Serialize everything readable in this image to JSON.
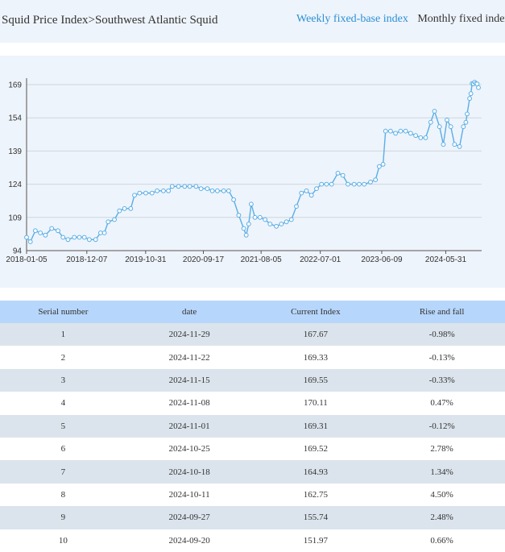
{
  "breadcrumb": {
    "parent": "Squid Price Index",
    "separator": ">",
    "current": "Southwest Atlantic Squid"
  },
  "tabs": [
    {
      "label": "Weekly fixed-base index",
      "active": true
    },
    {
      "label": "Monthly fixed index",
      "active": false
    }
  ],
  "colors": {
    "accent": "#2b8fd6",
    "series_line": "#5aaee6",
    "negative": "#1a9a2c",
    "positive": "#e02020",
    "panel_bg": "#eef4fb",
    "table_header_bg": "#b7d6fb",
    "row_alt_bg": "#dbe4ec"
  },
  "chart_data": {
    "type": "line",
    "ylim": [
      94,
      169
    ],
    "y_ticks": [
      94,
      109,
      124,
      139,
      154,
      169
    ],
    "x_ticks": [
      "2018-01-05",
      "2018-12-07",
      "2019-10-31",
      "2020-09-17",
      "2021-08-05",
      "2022-07-01",
      "2023-06-09",
      "2024-05-31"
    ],
    "grid": true,
    "series": [
      {
        "points": [
          [
            "2018-01-05",
            100
          ],
          [
            "2018-01-26",
            98
          ],
          [
            "2018-02-23",
            103
          ],
          [
            "2018-03-23",
            102
          ],
          [
            "2018-04-20",
            101
          ],
          [
            "2018-05-25",
            104
          ],
          [
            "2018-06-29",
            103
          ],
          [
            "2018-07-27",
            100
          ],
          [
            "2018-08-24",
            99
          ],
          [
            "2018-09-28",
            100
          ],
          [
            "2018-10-26",
            100
          ],
          [
            "2018-11-23",
            100
          ],
          [
            "2018-12-21",
            99
          ],
          [
            "2019-01-25",
            99
          ],
          [
            "2019-02-22",
            102
          ],
          [
            "2019-03-15",
            102
          ],
          [
            "2019-04-05",
            107
          ],
          [
            "2019-05-10",
            108
          ],
          [
            "2019-06-07",
            112
          ],
          [
            "2019-07-05",
            113
          ],
          [
            "2019-08-09",
            113
          ],
          [
            "2019-08-30",
            119
          ],
          [
            "2019-09-27",
            120
          ],
          [
            "2019-11-01",
            120
          ],
          [
            "2019-12-06",
            120
          ],
          [
            "2020-01-03",
            121
          ],
          [
            "2020-02-07",
            121
          ],
          [
            "2020-03-06",
            121
          ],
          [
            "2020-03-27",
            123
          ],
          [
            "2020-05-01",
            123
          ],
          [
            "2020-06-05",
            123
          ],
          [
            "2020-07-03",
            123
          ],
          [
            "2020-08-07",
            123
          ],
          [
            "2020-09-04",
            122
          ],
          [
            "2020-10-09",
            122
          ],
          [
            "2020-11-06",
            121
          ],
          [
            "2020-12-04",
            121
          ],
          [
            "2021-01-08",
            121
          ],
          [
            "2021-02-05",
            121
          ],
          [
            "2021-03-05",
            117
          ],
          [
            "2021-04-02",
            110
          ],
          [
            "2021-04-30",
            104
          ],
          [
            "2021-05-14",
            101
          ],
          [
            "2021-05-28",
            106
          ],
          [
            "2021-06-11",
            115
          ],
          [
            "2021-07-02",
            109
          ],
          [
            "2021-07-30",
            109
          ],
          [
            "2021-08-27",
            108
          ],
          [
            "2021-09-24",
            106
          ],
          [
            "2021-10-29",
            105
          ],
          [
            "2021-11-26",
            106
          ],
          [
            "2021-12-24",
            107
          ],
          [
            "2022-01-21",
            108
          ],
          [
            "2022-02-18",
            114
          ],
          [
            "2022-03-18",
            120
          ],
          [
            "2022-04-15",
            121
          ],
          [
            "2022-05-13",
            119
          ],
          [
            "2022-06-10",
            122
          ],
          [
            "2022-07-08",
            124
          ],
          [
            "2022-08-05",
            124
          ],
          [
            "2022-09-02",
            124
          ],
          [
            "2022-10-07",
            129
          ],
          [
            "2022-11-04",
            128
          ],
          [
            "2022-12-02",
            124
          ],
          [
            "2023-01-06",
            124
          ],
          [
            "2023-02-03",
            124
          ],
          [
            "2023-03-03",
            124
          ],
          [
            "2023-04-07",
            125
          ],
          [
            "2023-05-05",
            126
          ],
          [
            "2023-05-26",
            132
          ],
          [
            "2023-06-16",
            133
          ],
          [
            "2023-06-30",
            148
          ],
          [
            "2023-07-28",
            148
          ],
          [
            "2023-08-25",
            147
          ],
          [
            "2023-09-22",
            148
          ],
          [
            "2023-10-20",
            148
          ],
          [
            "2023-11-17",
            147
          ],
          [
            "2023-12-15",
            146
          ],
          [
            "2024-01-12",
            145
          ],
          [
            "2024-02-09",
            145
          ],
          [
            "2024-03-08",
            152
          ],
          [
            "2024-03-29",
            157
          ],
          [
            "2024-04-26",
            150
          ],
          [
            "2024-05-17",
            142
          ],
          [
            "2024-06-07",
            153
          ],
          [
            "2024-06-28",
            150
          ],
          [
            "2024-07-19",
            142
          ],
          [
            "2024-08-16",
            141
          ],
          [
            "2024-09-06",
            150
          ],
          [
            "2024-09-20",
            151.97
          ],
          [
            "2024-09-27",
            155.74
          ],
          [
            "2024-10-11",
            162.75
          ],
          [
            "2024-10-18",
            164.93
          ],
          [
            "2024-10-25",
            169.52
          ],
          [
            "2024-11-01",
            169.31
          ],
          [
            "2024-11-08",
            170.11
          ],
          [
            "2024-11-15",
            169.55
          ],
          [
            "2024-11-22",
            169.33
          ],
          [
            "2024-11-29",
            167.67
          ]
        ]
      }
    ]
  },
  "table": {
    "headers": [
      "Serial number",
      "date",
      "Current Index",
      "Rise and fall"
    ],
    "rows": [
      {
        "serial": "1",
        "date": "2024-11-29",
        "index": "167.67",
        "change": "-0.98%",
        "direction": "down"
      },
      {
        "serial": "2",
        "date": "2024-11-22",
        "index": "169.33",
        "change": "-0.13%",
        "direction": "down"
      },
      {
        "serial": "3",
        "date": "2024-11-15",
        "index": "169.55",
        "change": "-0.33%",
        "direction": "down"
      },
      {
        "serial": "4",
        "date": "2024-11-08",
        "index": "170.11",
        "change": "0.47%",
        "direction": "up"
      },
      {
        "serial": "5",
        "date": "2024-11-01",
        "index": "169.31",
        "change": "-0.12%",
        "direction": "down"
      },
      {
        "serial": "6",
        "date": "2024-10-25",
        "index": "169.52",
        "change": "2.78%",
        "direction": "up"
      },
      {
        "serial": "7",
        "date": "2024-10-18",
        "index": "164.93",
        "change": "1.34%",
        "direction": "up"
      },
      {
        "serial": "8",
        "date": "2024-10-11",
        "index": "162.75",
        "change": "4.50%",
        "direction": "up"
      },
      {
        "serial": "9",
        "date": "2024-09-27",
        "index": "155.74",
        "change": "2.48%",
        "direction": "up"
      },
      {
        "serial": "10",
        "date": "2024-09-20",
        "index": "151.97",
        "change": "0.66%",
        "direction": "up"
      }
    ]
  }
}
